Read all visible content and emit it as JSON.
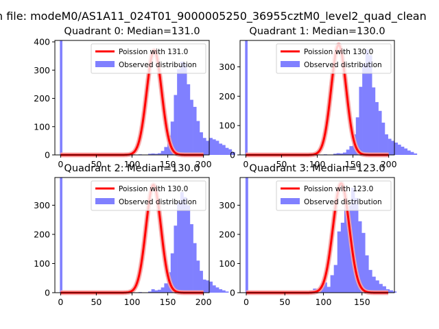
{
  "figure": {
    "suptitle": "n file: modeM0/AS1A11_024T01_9000005250_36955cztM0_level2_quad_clean"
  },
  "chart_data": [
    {
      "type": "bar",
      "title": "Quadrant 0: Median=131.0",
      "xlim": [
        -8,
        208
      ],
      "ylim": [
        0,
        405
      ],
      "xticks": [
        0,
        50,
        100,
        150,
        200
      ],
      "yticks": [
        0,
        100,
        200,
        300,
        400
      ],
      "legend": {
        "placement": "top-right",
        "line_label": "Poission with 131.0",
        "bar_label": "Observed distribution"
      },
      "median": 131.0,
      "spike": {
        "x": 0,
        "value": 405
      },
      "hist": {
        "start": 55,
        "width": 4.5,
        "values": [
          0,
          0,
          0,
          0,
          0,
          0,
          0,
          0,
          0,
          0,
          0,
          0,
          2,
          0,
          0,
          4,
          5,
          4,
          6,
          14,
          28,
          68,
          118,
          212,
          303,
          330,
          323,
          250,
          195,
          170,
          120,
          80,
          60,
          50,
          60,
          55,
          50,
          40,
          35,
          25,
          20,
          10,
          0,
          0,
          0,
          0
        ]
      },
      "poisson_peak": 370
    },
    {
      "type": "bar",
      "title": "Quadrant 1: Median=130.0",
      "xlim": [
        -8,
        208
      ],
      "ylim": [
        0,
        390
      ],
      "xticks": [
        0,
        50,
        100,
        150,
        200
      ],
      "yticks": [
        0,
        100,
        200,
        300
      ],
      "legend": {
        "placement": "top-right",
        "line_label": "Poission with 130.0",
        "bar_label": "Observed distribution"
      },
      "median": 130.0,
      "spike": {
        "x": 0,
        "value": 390
      },
      "hist": {
        "start": 55,
        "width": 4.5,
        "values": [
          0,
          0,
          0,
          0,
          0,
          0,
          0,
          0,
          0,
          0,
          0,
          0,
          2,
          0,
          0,
          4,
          6,
          5,
          8,
          18,
          30,
          70,
          128,
          232,
          310,
          360,
          340,
          230,
          180,
          150,
          110,
          70,
          55,
          48,
          42,
          35,
          28,
          22,
          15,
          10,
          5,
          0,
          0,
          0,
          0,
          0
        ]
      },
      "poisson_peak": 375
    },
    {
      "type": "bar",
      "title": "Quadrant 2: Median=130.0",
      "xlim": [
        -8,
        208
      ],
      "ylim": [
        0,
        395
      ],
      "xticks": [
        0,
        50,
        100,
        150,
        200
      ],
      "yticks": [
        0,
        100,
        200,
        300
      ],
      "legend": {
        "placement": "top-right",
        "line_label": "Poission with 130.0",
        "bar_label": "Observed distribution"
      },
      "median": 130.0,
      "spike": {
        "x": 0,
        "value": 395
      },
      "hist": {
        "start": 55,
        "width": 4.5,
        "values": [
          0,
          0,
          0,
          0,
          0,
          0,
          0,
          0,
          0,
          0,
          0,
          0,
          2,
          0,
          0,
          4,
          12,
          8,
          10,
          18,
          32,
          70,
          135,
          230,
          312,
          345,
          328,
          300,
          235,
          170,
          110,
          75,
          45,
          42,
          38,
          25,
          18,
          12,
          8,
          4,
          0,
          0,
          0,
          0,
          0,
          0
        ]
      },
      "poisson_peak": 370
    },
    {
      "type": "bar",
      "title": "Quadrant 3: Median=123.0",
      "xlim": [
        -8,
        192
      ],
      "ylim": [
        0,
        395
      ],
      "xticks": [
        0,
        50,
        100,
        150
      ],
      "yticks": [
        0,
        100,
        200,
        300
      ],
      "legend": {
        "placement": "top-right",
        "line_label": "Poission with 123.0",
        "bar_label": "Observed distribution"
      },
      "median": 123.0,
      "spike": {
        "x": 0,
        "value": 395
      },
      "hist": {
        "start": 55,
        "width": 4.5,
        "values": [
          2,
          0,
          2,
          0,
          4,
          2,
          8,
          14,
          10,
          22,
          35,
          20,
          60,
          95,
          210,
          240,
          305,
          300,
          360,
          325,
          245,
          205,
          128,
          78,
          55,
          42,
          30,
          22,
          12,
          8,
          4,
          0,
          0,
          0,
          0,
          0,
          0,
          0,
          0,
          0
        ]
      },
      "poisson_peak": 375
    }
  ],
  "colors": {
    "bar": "#8080ff",
    "line": "#ff0000",
    "line_faded": "#f5a3a3",
    "axis": "#000000"
  }
}
